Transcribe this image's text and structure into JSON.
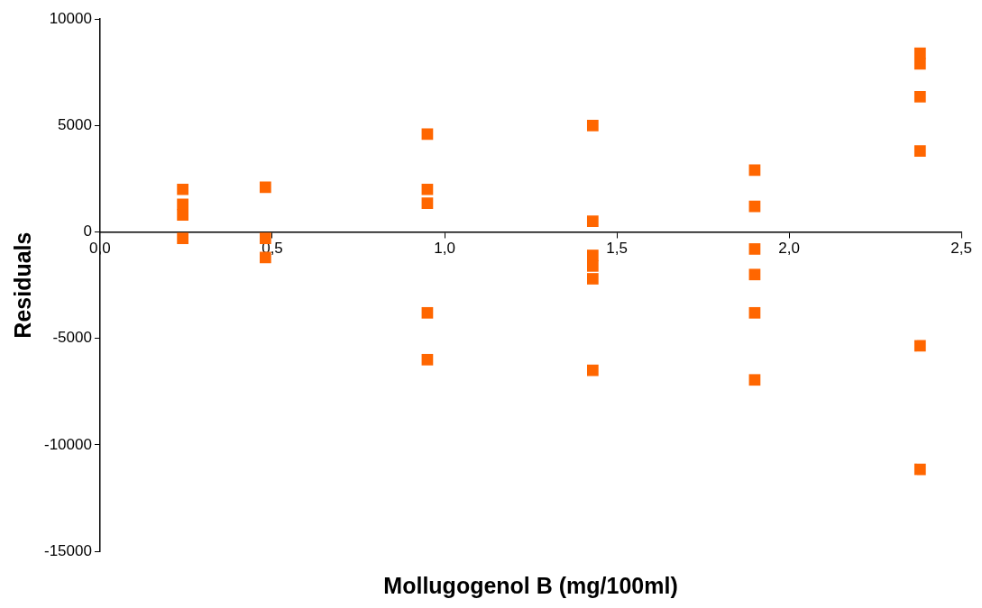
{
  "chart_data": {
    "type": "scatter",
    "xlabel": "Mollugogenol B (mg/100ml)",
    "ylabel": "Residuals",
    "series": [
      {
        "color": "#ff6600",
        "x": [
          0.24,
          0.24,
          0.24,
          0.24,
          0.48,
          0.48,
          0.48,
          0.95,
          0.95,
          0.95,
          0.95,
          0.95,
          1.43,
          1.43,
          1.43,
          1.43,
          1.43,
          1.43,
          1.9,
          1.9,
          1.9,
          1.9,
          1.9,
          1.9,
          2.38,
          2.38,
          2.38,
          2.38,
          2.38,
          2.38
        ],
        "values": [
          2000,
          1300,
          800,
          -300,
          2100,
          -300,
          -1200,
          4600,
          2000,
          1350,
          -3800,
          -6000,
          5000,
          500,
          -1100,
          -1600,
          -2200,
          -6500,
          2900,
          1200,
          -800,
          -2000,
          -3800,
          -6950,
          8400,
          7900,
          6350,
          3800,
          -5350,
          -11150
        ]
      }
    ],
    "xlim": [
      0,
      2.5
    ],
    "xticks": [
      {
        "value": 0,
        "label": "0,0"
      },
      {
        "value": 0.5,
        "label": "0,5"
      },
      {
        "value": 1,
        "label": "1,0"
      },
      {
        "value": 1.5,
        "label": "1,5"
      },
      {
        "value": 2,
        "label": "2,0"
      },
      {
        "value": 2.5,
        "label": "2,5"
      }
    ],
    "ylim": [
      -15000,
      10000
    ],
    "yticks": [
      -15000,
      -10000,
      -5000,
      0,
      5000,
      10000
    ],
    "grid": false,
    "legend": false,
    "marker": "square"
  }
}
